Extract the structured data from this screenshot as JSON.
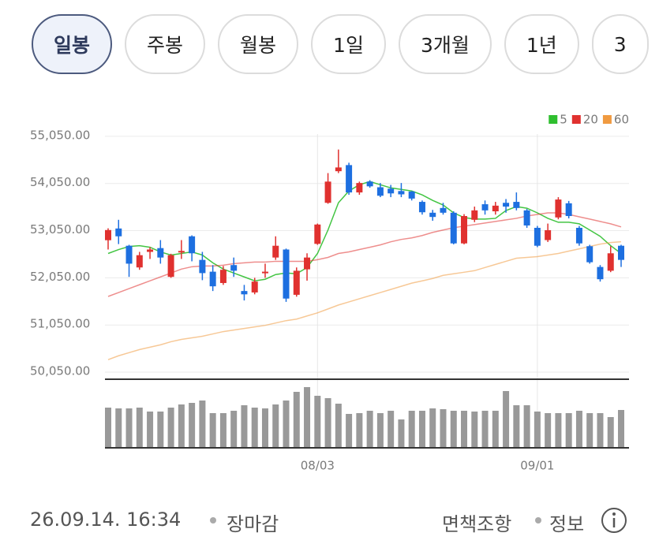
{
  "tabs": [
    "일봉",
    "주봉",
    "월봉",
    "1일",
    "3개월",
    "1년",
    "3"
  ],
  "chart_data": {
    "type": "candlestick",
    "categories": [
      null,
      null,
      null,
      null,
      null,
      null,
      null,
      null,
      null,
      null,
      null,
      null,
      null,
      null,
      null,
      null,
      null,
      null,
      null,
      null,
      "08/03",
      null,
      null,
      null,
      null,
      null,
      null,
      null,
      null,
      null,
      null,
      null,
      null,
      null,
      null,
      null,
      null,
      null,
      null,
      null,
      null,
      "09/01",
      null,
      null,
      null,
      null,
      null,
      null,
      null,
      null
    ],
    "open": [
      52847,
      53096,
      52730,
      52270,
      52600,
      52680,
      52070,
      52600,
      52930,
      52430,
      52180,
      51940,
      52320,
      51770,
      51740,
      52150,
      52480,
      52650,
      51690,
      52230,
      52770,
      53640,
      54310,
      54440,
      53860,
      54090,
      53970,
      53940,
      53890,
      53880,
      53660,
      53430,
      53530,
      53430,
      52780,
      53280,
      53610,
      53460,
      53640,
      53660,
      53480,
      53110,
      52850,
      53330,
      53630,
      53110,
      52720,
      52280,
      52200,
      52730
    ],
    "high": [
      53100,
      53280,
      52750,
      52600,
      52700,
      52850,
      52560,
      52850,
      52950,
      52600,
      52320,
      52300,
      52480,
      51900,
      52050,
      52350,
      52930,
      52670,
      52270,
      52570,
      53200,
      54270,
      54770,
      54490,
      54090,
      54120,
      54060,
      54020,
      54060,
      53890,
      53690,
      53490,
      53640,
      53460,
      53400,
      53560,
      53690,
      53660,
      53720,
      53860,
      53510,
      53150,
      53200,
      53760,
      53680,
      53150,
      52750,
      52320,
      52720,
      52750
    ],
    "low": [
      52650,
      52765,
      52070,
      52220,
      52450,
      52350,
      52050,
      52450,
      52400,
      52000,
      51770,
      51900,
      52070,
      51570,
      51700,
      52050,
      52430,
      51540,
      51650,
      51990,
      52750,
      53620,
      54270,
      53810,
      53810,
      53960,
      53760,
      53760,
      53760,
      53690,
      53390,
      53260,
      53390,
      52760,
      52760,
      53230,
      53390,
      53390,
      53430,
      53480,
      53110,
      52700,
      52810,
      53290,
      53310,
      52730,
      52350,
      51970,
      52170,
      52280
    ],
    "close": [
      53063,
      52930,
      52350,
      52530,
      52650,
      52480,
      52530,
      52620,
      52570,
      52150,
      51870,
      52220,
      52200,
      51700,
      51970,
      52180,
      52730,
      51610,
      52200,
      52480,
      53180,
      54090,
      54390,
      53860,
      54060,
      53990,
      53790,
      53840,
      53820,
      53730,
      53440,
      53340,
      53430,
      52780,
      53360,
      53480,
      53480,
      53580,
      53560,
      53530,
      53160,
      52730,
      53060,
      53710,
      53360,
      52780,
      52380,
      52020,
      52570,
      52430
    ],
    "up_color": "#e0312f",
    "down_color": "#1d6fe0",
    "ylim": [
      49900,
      55600
    ],
    "yticks": [
      {
        "value": 50050,
        "label": "50,050.00"
      },
      {
        "value": 51050,
        "label": "51,050.00"
      },
      {
        "value": 52050,
        "label": "52,050.00"
      },
      {
        "value": 53050,
        "label": "53,050.00"
      },
      {
        "value": 54050,
        "label": "54,050.00"
      },
      {
        "value": 55050,
        "label": "55,050.00"
      }
    ],
    "grid": true,
    "legend": "top-right",
    "series": [
      {
        "name": "5",
        "color": "#2fbf2f",
        "values": [
          52566,
          52649,
          52715,
          52732,
          52698,
          52599,
          52533,
          52566,
          52599,
          52533,
          52367,
          52235,
          52152,
          52069,
          51986,
          52019,
          52119,
          52152,
          52135,
          52268,
          52566,
          53063,
          53642,
          53891,
          54023,
          54090,
          54023,
          53957,
          53924,
          53891,
          53808,
          53692,
          53593,
          53427,
          53328,
          53295,
          53295,
          53311,
          53477,
          53560,
          53526,
          53427,
          53311,
          53228,
          53228,
          53195,
          53063,
          52930,
          52732,
          52566
        ]
      },
      {
        "name": "20",
        "color": "#e0312f",
        "values": [
          51655,
          51738,
          51821,
          51904,
          51986,
          52069,
          52152,
          52235,
          52285,
          52301,
          52301,
          52318,
          52351,
          52367,
          52384,
          52384,
          52400,
          52400,
          52400,
          52400,
          52434,
          52483,
          52566,
          52599,
          52649,
          52698,
          52748,
          52814,
          52864,
          52897,
          52947,
          53013,
          53063,
          53112,
          53146,
          53179,
          53212,
          53245,
          53278,
          53311,
          53361,
          53394,
          53427,
          53427,
          53394,
          53344,
          53295,
          53245,
          53195,
          53129
        ]
      },
      {
        "name": "60",
        "color": "#f09a40",
        "values": [
          50314,
          50397,
          50463,
          50529,
          50579,
          50629,
          50695,
          50744,
          50778,
          50811,
          50860,
          50910,
          50943,
          50976,
          51009,
          51042,
          51092,
          51142,
          51175,
          51241,
          51307,
          51390,
          51473,
          51539,
          51606,
          51672,
          51738,
          51804,
          51870,
          51937,
          51986,
          52036,
          52102,
          52135,
          52168,
          52202,
          52268,
          52334,
          52400,
          52466,
          52483,
          52500,
          52533,
          52566,
          52616,
          52665,
          52715,
          52765,
          52798,
          52814
        ]
      }
    ],
    "volume": {
      "color": "#999999",
      "ylim": [
        0,
        80
      ],
      "values": [
        51,
        50,
        50,
        51,
        46,
        46,
        51,
        55,
        57,
        60,
        44,
        44,
        47,
        54,
        51,
        50,
        55,
        60,
        71,
        77,
        66,
        63,
        56,
        43,
        44,
        47,
        44,
        47,
        36,
        47,
        47,
        50,
        49,
        47,
        47,
        46,
        47,
        47,
        72,
        54,
        54,
        46,
        44,
        44,
        44,
        47,
        44,
        44,
        39,
        48
      ]
    }
  },
  "footer": {
    "timestamp": "26.09.14. 16:34",
    "status": "장마감",
    "disclaimer": "면책조항",
    "info": "정보"
  }
}
